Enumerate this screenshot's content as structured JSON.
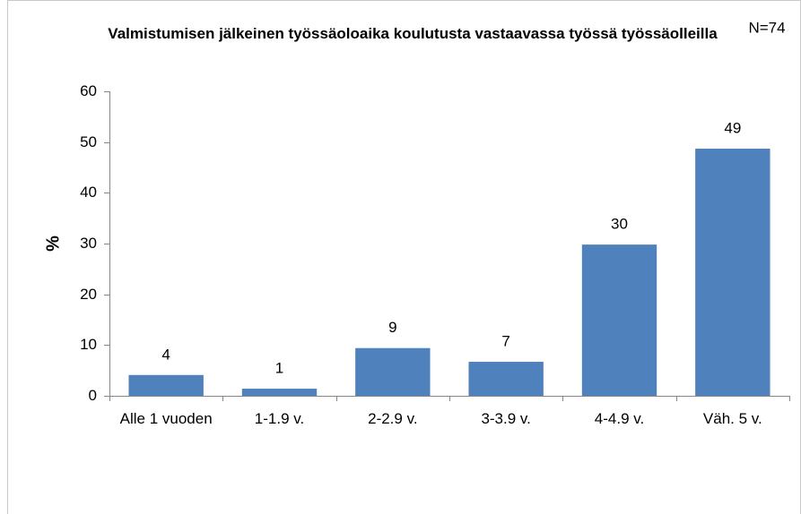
{
  "chart_data": {
    "type": "bar",
    "title": "Valmistumisen jälkeinen työssäoloaika koulutusta vastaavassa työssä työssäolleilla",
    "annotation": "N=74",
    "y_label": "%",
    "categories": [
      "Alle 1 vuoden",
      "1-1.9 v.",
      "2-2.9 v.",
      "3-3.9 v.",
      "4-4.9 v.",
      "Väh. 5 v."
    ],
    "values": [
      4.1,
      1.4,
      9.4,
      6.7,
      29.8,
      48.7
    ],
    "value_labels": [
      "4",
      "1",
      "9",
      "7",
      "30",
      "49"
    ],
    "color": "#4f81bd",
    "ylim": [
      0,
      60
    ],
    "yticks": [
      0,
      10,
      20,
      30,
      40,
      50,
      60
    ],
    "grid": false
  }
}
